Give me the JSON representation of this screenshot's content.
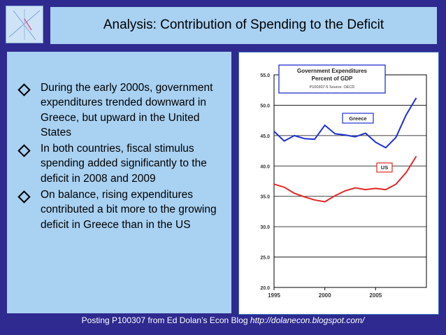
{
  "slide": {
    "title": "Analysis: Contribution of Spending to the Deficit",
    "bullets": [
      "During the early 2000s, government expenditures trended downward in Greece, but upward in the United States",
      "In both countries, fiscal stimulus spending added significantly to the deficit in 2008 and 2009",
      "On balance, rising expenditures contributed a bit more to the growing deficit in Greece than in the US"
    ],
    "footer_text": "Posting P100307 from Ed Dolan’s Econ Blog ",
    "footer_url": "http://dolanecon.blogspot.com/"
  },
  "colors": {
    "background": "#2e2a8f",
    "panel": "#a9d1f2",
    "greece": "#1f2fd1",
    "us": "#e32626"
  },
  "chart_data": {
    "type": "line",
    "title": "Government Expenditures",
    "subtitle": "Percent of GDP",
    "source": "P100307-5 Source: OECD",
    "x": [
      1995,
      1996,
      1997,
      1998,
      1999,
      2000,
      2001,
      2002,
      2003,
      2004,
      2005,
      2006,
      2007,
      2008,
      2009
    ],
    "xticks": [
      "1995",
      "2000",
      "2005"
    ],
    "yticks": [
      "20.0",
      "25.0",
      "30.0",
      "35.0",
      "40.0",
      "45.0",
      "50.0",
      "55.0"
    ],
    "ylim": [
      20,
      55
    ],
    "grid": true,
    "series": [
      {
        "name": "Greece",
        "values": [
          45.7,
          44.1,
          45.0,
          44.5,
          44.4,
          46.7,
          45.3,
          45.1,
          44.8,
          45.4,
          43.9,
          43.0,
          44.7,
          48.4,
          51.2
        ]
      },
      {
        "name": "US",
        "values": [
          37.0,
          36.5,
          35.5,
          34.9,
          34.4,
          34.1,
          35.1,
          35.9,
          36.4,
          36.1,
          36.3,
          36.1,
          37.0,
          38.9,
          41.6
        ]
      }
    ]
  }
}
